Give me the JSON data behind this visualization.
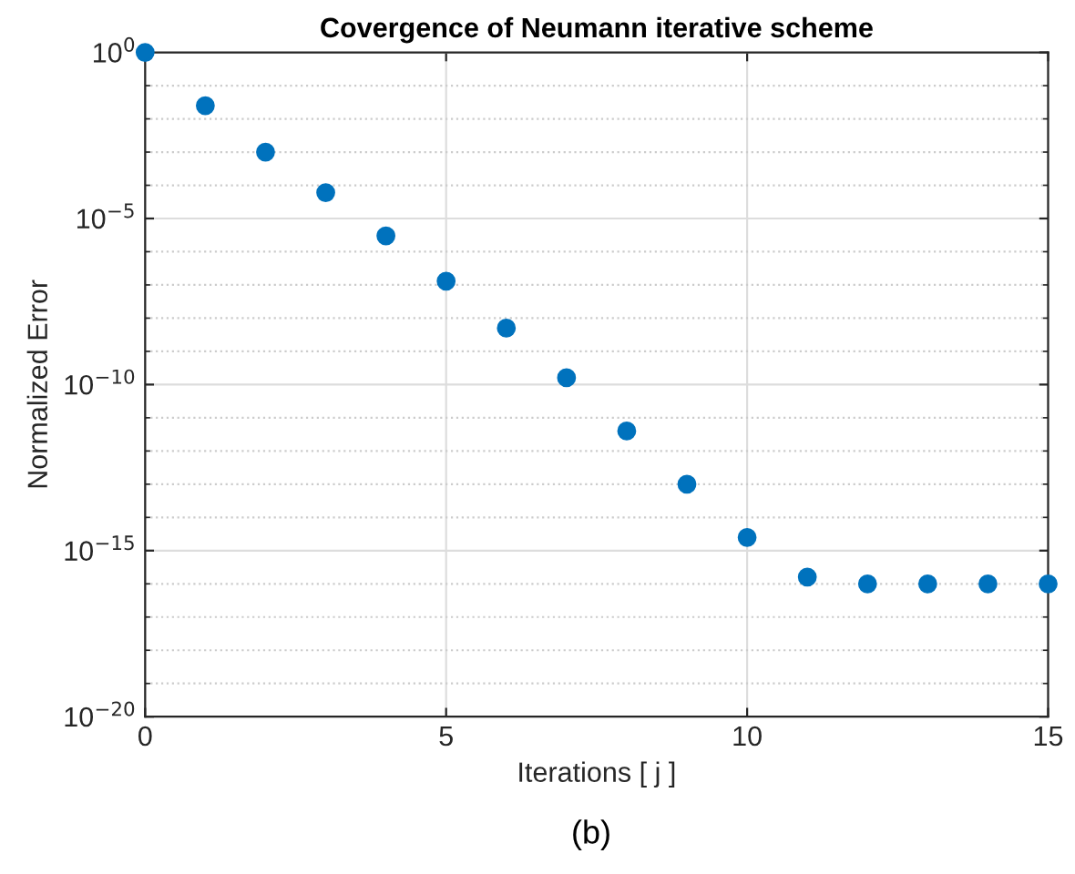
{
  "chart_data": {
    "type": "scatter",
    "title": "Covergence of Neumann iterative scheme",
    "xlabel": "Iterations [ j ]",
    "ylabel": "Normalized Error",
    "annotations": [
      "(b)"
    ],
    "x": [
      0,
      1,
      2,
      3,
      4,
      5,
      6,
      7,
      8,
      9,
      10,
      11,
      12,
      13,
      14,
      15
    ],
    "series": [
      {
        "color": "#0072bd",
        "values": [
          1,
          0.025,
          0.001,
          6e-05,
          3e-06,
          1.3e-07,
          5e-09,
          1.6e-10,
          4e-12,
          1e-13,
          2.5e-15,
          1.6e-16,
          1e-16,
          1e-16,
          1e-16,
          1e-16
        ]
      }
    ],
    "log": "y",
    "xlim": [
      0,
      15
    ],
    "ylim": [
      1e-20,
      1
    ],
    "xticks": [
      0,
      5,
      10,
      15
    ],
    "yticks": [
      {
        "value": 1,
        "label": "10$^{0}$"
      },
      {
        "value": 1e-05,
        "label": "10$^{−5}$"
      },
      {
        "value": 1e-10,
        "label": "10$^{−10}$"
      },
      {
        "value": 1e-15,
        "label": "10$^{−15}$"
      },
      {
        "value": 1e-20,
        "label": "10$^{−20}$"
      }
    ],
    "grid": true,
    "marker": "circle"
  }
}
